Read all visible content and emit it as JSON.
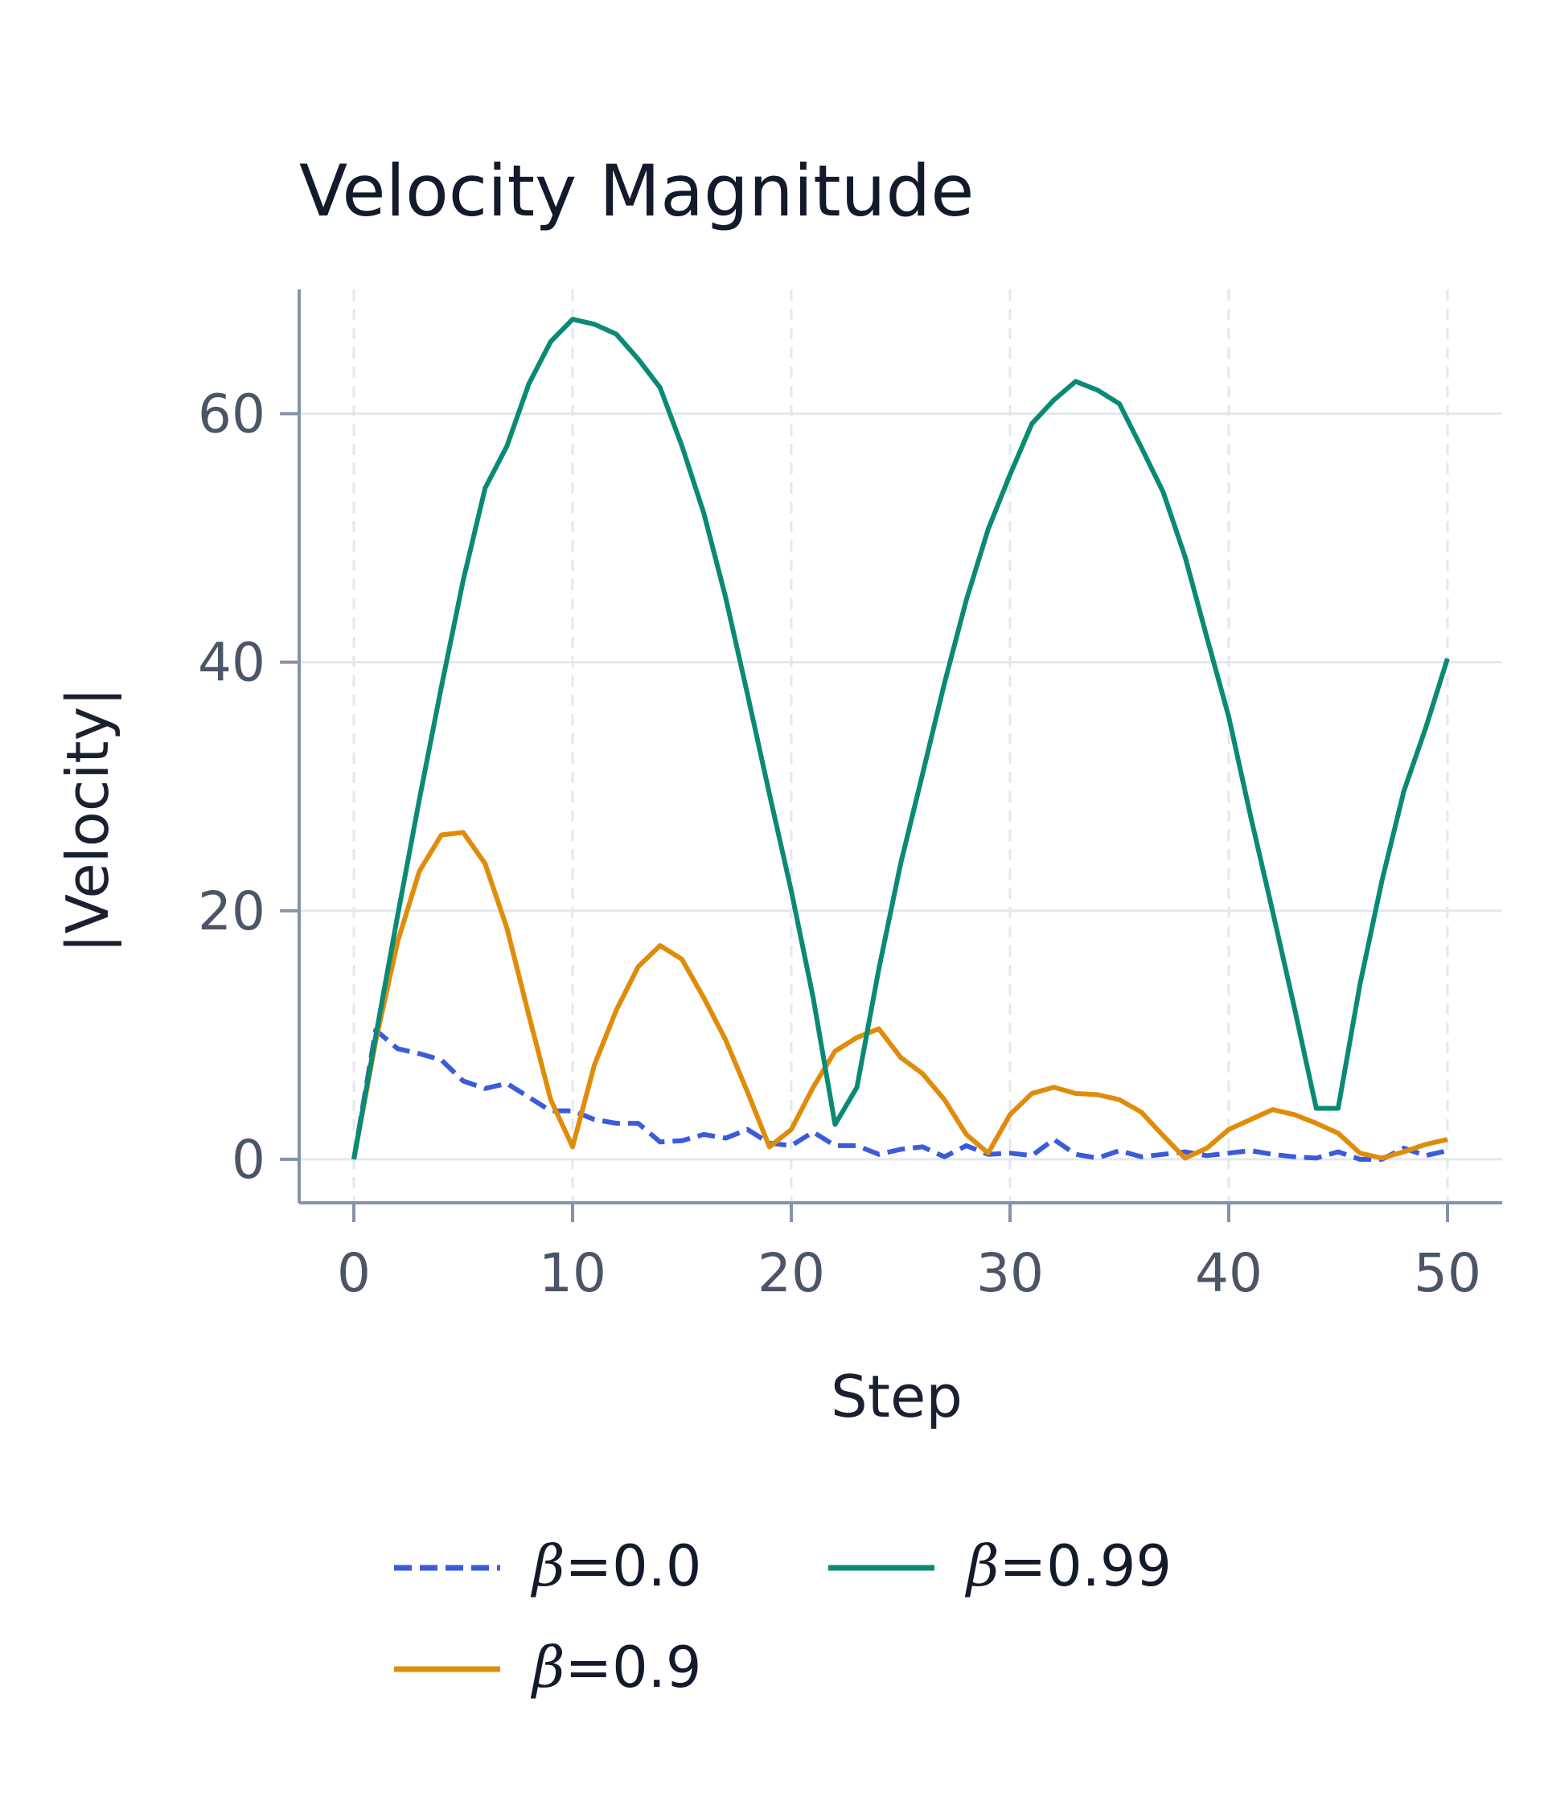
{
  "chart_data": {
    "type": "line",
    "title": "Velocity Magnitude",
    "xlabel": "Step",
    "ylabel": "|Velocity|",
    "xlim": [
      -2.5,
      52.5
    ],
    "ylim": [
      -3.5,
      70
    ],
    "xticks": [
      0,
      10,
      20,
      30,
      40,
      50
    ],
    "yticks": [
      0,
      20,
      40,
      60
    ],
    "grid": true,
    "legend_position": "bottom",
    "series": [
      {
        "name": "β=0.0",
        "legend_prefix": "β",
        "legend_suffix": "=0.0",
        "color": "#3b5bdb",
        "dash": "dashed",
        "x": [
          0,
          1,
          2,
          3,
          4,
          5,
          6,
          7,
          8,
          9,
          10,
          11,
          12,
          13,
          14,
          15,
          16,
          17,
          18,
          19,
          20,
          21,
          22,
          23,
          24,
          25,
          26,
          27,
          28,
          29,
          30,
          31,
          32,
          33,
          34,
          35,
          36,
          37,
          38,
          39,
          40,
          41,
          42,
          43,
          44,
          45,
          46,
          47,
          48,
          49,
          50
        ],
        "y": [
          0,
          10.4,
          8.9,
          8.5,
          8.0,
          6.3,
          5.7,
          6.1,
          5.0,
          3.9,
          3.9,
          3.2,
          2.9,
          2.9,
          1.4,
          1.5,
          2.0,
          1.7,
          2.4,
          1.3,
          1.1,
          2.2,
          1.1,
          1.1,
          0.4,
          0.8,
          1.0,
          0.2,
          1.1,
          0.4,
          0.5,
          0.3,
          1.6,
          0.4,
          0.1,
          0.7,
          0.2,
          0.4,
          0.6,
          0.3,
          0.5,
          0.7,
          0.4,
          0.2,
          0.1,
          0.6,
          0.0,
          0.0,
          0.9,
          0.3,
          0.7
        ]
      },
      {
        "name": "β=0.9",
        "legend_prefix": "β",
        "legend_suffix": "=0.9",
        "color": "#e08c0b",
        "dash": "solid",
        "x": [
          0,
          1,
          2,
          3,
          4,
          5,
          6,
          7,
          8,
          9,
          10,
          11,
          12,
          13,
          14,
          15,
          16,
          17,
          18,
          19,
          20,
          21,
          22,
          23,
          24,
          25,
          26,
          27,
          28,
          29,
          30,
          31,
          32,
          33,
          34,
          35,
          36,
          37,
          38,
          39,
          40,
          41,
          42,
          43,
          44,
          45,
          46,
          47,
          48,
          49,
          50
        ],
        "y": [
          0,
          9.5,
          17.5,
          23.2,
          26.1,
          26.3,
          23.8,
          18.6,
          11.6,
          4.8,
          1.0,
          7.6,
          12.0,
          15.5,
          17.2,
          16.1,
          13.0,
          9.6,
          5.4,
          1.0,
          2.4,
          5.8,
          8.7,
          9.8,
          10.5,
          8.2,
          6.9,
          4.8,
          2.0,
          0.5,
          3.6,
          5.3,
          5.8,
          5.3,
          5.2,
          4.8,
          3.8,
          1.9,
          0.1,
          0.9,
          2.4,
          3.2,
          4.0,
          3.6,
          2.9,
          2.1,
          0.5,
          0.1,
          0.6,
          1.2,
          1.6
        ]
      },
      {
        "name": "β=0.99",
        "legend_prefix": "β",
        "legend_suffix": "=0.99",
        "color": "#0a8a75",
        "dash": "solid",
        "x": [
          0,
          1,
          2,
          3,
          4,
          5,
          6,
          7,
          8,
          9,
          10,
          11,
          12,
          13,
          14,
          15,
          16,
          17,
          18,
          19,
          20,
          21,
          22,
          23,
          24,
          25,
          26,
          27,
          28,
          29,
          30,
          31,
          32,
          33,
          34,
          35,
          36,
          37,
          38,
          39,
          40,
          41,
          42,
          43,
          44,
          45,
          46,
          47,
          48,
          49,
          50
        ],
        "y": [
          0,
          9.9,
          19.6,
          29.0,
          38.0,
          46.6,
          54.0,
          57.4,
          62.4,
          65.8,
          67.6,
          67.2,
          66.4,
          64.4,
          62.1,
          57.4,
          52.0,
          45.2,
          37.4,
          29.4,
          21.6,
          13.0,
          2.8,
          5.8,
          15.3,
          23.8,
          31.0,
          38.3,
          45.0,
          50.7,
          55.1,
          59.2,
          61.1,
          62.6,
          61.9,
          60.8,
          57.3,
          53.7,
          48.5,
          42.0,
          35.6,
          27.6,
          20.0,
          12.2,
          4.1,
          4.1,
          14.1,
          22.4,
          29.6,
          34.7,
          40.3
        ]
      }
    ]
  }
}
